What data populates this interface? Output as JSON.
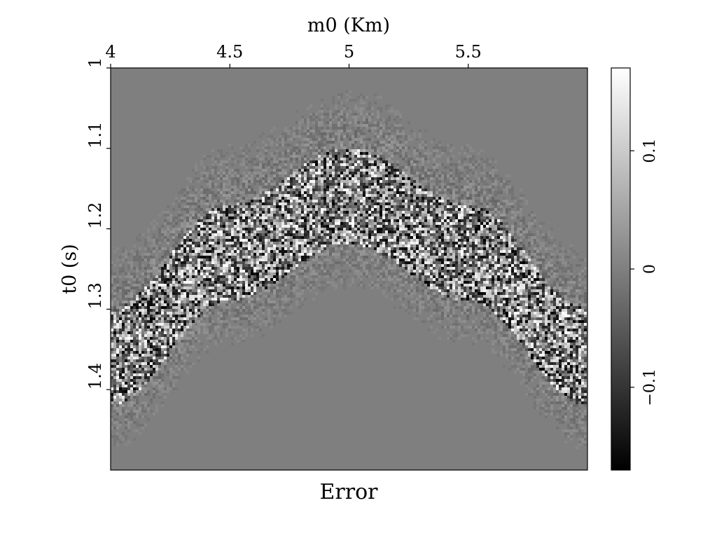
{
  "chart_data": {
    "type": "heatmap",
    "title": "Error",
    "xlabel": "m0 (Km)",
    "ylabel": "t0 (s)",
    "x_axis_position": "top",
    "xlim": [
      4.0,
      6.0
    ],
    "ylim": [
      1.0,
      1.5
    ],
    "y_inverted": true,
    "x_ticks": [
      4,
      4.5,
      5,
      5.5
    ],
    "x_tick_labels": [
      "4",
      "4.5",
      "5",
      "5.5"
    ],
    "y_ticks": [
      1.0,
      1.1,
      1.2,
      1.3,
      1.4
    ],
    "y_tick_labels": [
      "1",
      "1.1",
      "1.2",
      "1.3",
      "1.4"
    ],
    "colormap": "grayscale",
    "color_range": [
      -0.17,
      0.17
    ],
    "colorbar": {
      "position": "right",
      "ticks": [
        0.1,
        0,
        -0.1
      ],
      "tick_labels": [
        "0.1",
        "0",
        "−0.1"
      ]
    },
    "background_value": 0,
    "features": [
      {
        "shape": "hyperbola",
        "apex_m0": 5.0,
        "apex_t0": 1.13,
        "band_thickness_t0": 0.08,
        "noise_amplitude": 0.17,
        "edge_points": [
          [
            4.0,
            1.33
          ],
          [
            4.5,
            1.2
          ],
          [
            5.0,
            1.13
          ],
          [
            5.5,
            1.2
          ],
          [
            6.0,
            1.33
          ]
        ]
      }
    ]
  }
}
